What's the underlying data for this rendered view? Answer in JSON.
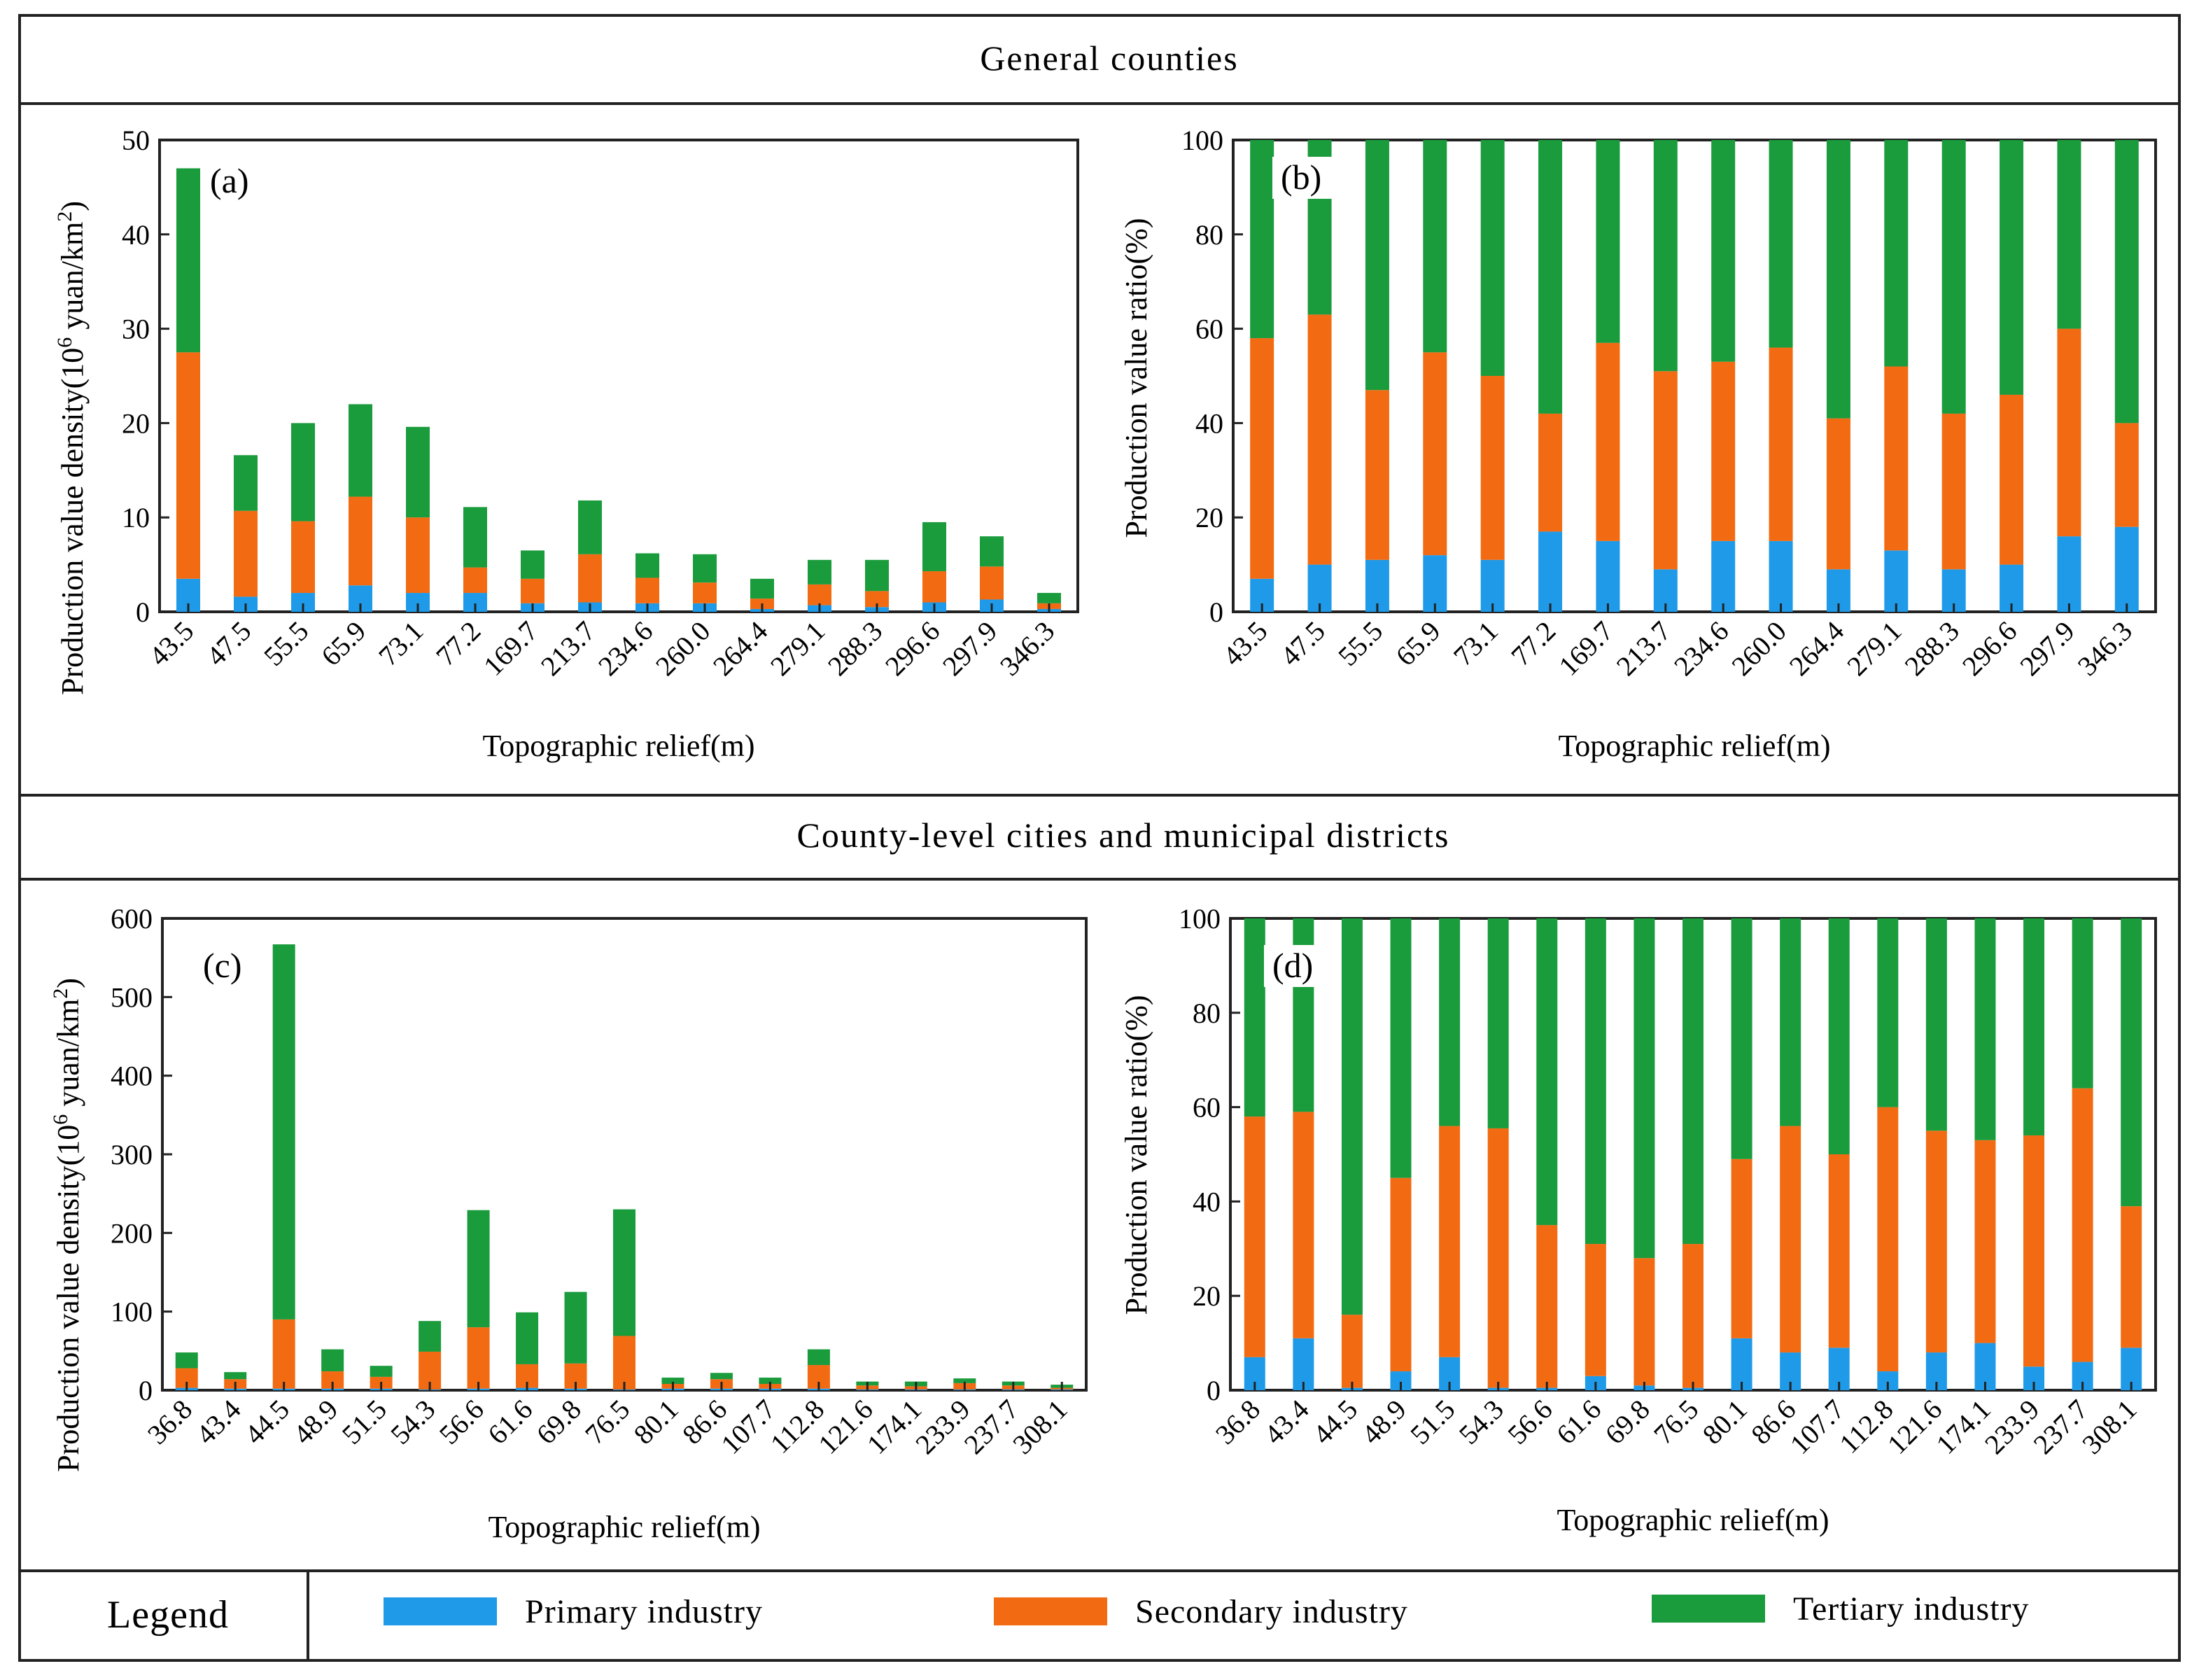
{
  "figure": {
    "section_top_title": "General counties",
    "section_bottom_title": "County-level cities and municipal districts",
    "legend_title": "Legend"
  },
  "series_meta": [
    {
      "name": "Primary industry",
      "color": "#1f9ae8"
    },
    {
      "name": "Secondary industry",
      "color": "#f26b12"
    },
    {
      "name": "Tertiary industry",
      "color": "#1a9b3c"
    }
  ],
  "chart_data": [
    {
      "id": "a",
      "panel_label": "(a)",
      "type": "bar",
      "stacked": true,
      "categories": [
        "43.5",
        "47.5",
        "55.5",
        "65.9",
        "73.1",
        "77.2",
        "169.7",
        "213.7",
        "234.6",
        "260.0",
        "264.4",
        "279.1",
        "288.3",
        "296.6",
        "297.9",
        "346.3"
      ],
      "series": [
        {
          "name": "Primary industry",
          "values": [
            3.5,
            1.6,
            2.0,
            2.8,
            2.0,
            2.0,
            0.9,
            1.0,
            0.9,
            0.9,
            0.3,
            0.7,
            0.5,
            1.0,
            1.3,
            0.3
          ]
        },
        {
          "name": "Secondary industry",
          "values": [
            24.0,
            9.1,
            7.6,
            9.4,
            8.0,
            2.7,
            2.6,
            5.1,
            2.7,
            2.2,
            1.1,
            2.2,
            1.7,
            3.3,
            3.5,
            0.6
          ]
        },
        {
          "name": "Tertiary industry",
          "values": [
            19.5,
            5.9,
            10.4,
            9.8,
            9.6,
            6.4,
            3.0,
            5.7,
            2.6,
            3.0,
            2.1,
            2.6,
            3.3,
            5.2,
            3.2,
            1.1
          ]
        }
      ],
      "xlabel": "Topographic relief(m)",
      "ylabel_main": "Production value density(10",
      "ylabel_exp1": "6",
      "ylabel_mid": " yuan/km",
      "ylabel_exp2": "2",
      "ylabel_end": ")",
      "ylim": [
        0,
        50
      ],
      "yticks": [
        0,
        10,
        20,
        30,
        40,
        50
      ],
      "grid": false
    },
    {
      "id": "b",
      "panel_label": "(b)",
      "type": "bar",
      "stacked": true,
      "categories": [
        "43.5",
        "47.5",
        "55.5",
        "65.9",
        "73.1",
        "77.2",
        "169.7",
        "213.7",
        "234.6",
        "260.0",
        "264.4",
        "279.1",
        "288.3",
        "296.6",
        "297.9",
        "346.3"
      ],
      "series": [
        {
          "name": "Primary industry",
          "values": [
            7,
            10,
            11,
            12,
            11,
            17,
            15,
            9,
            15,
            15,
            9,
            13,
            9,
            10,
            16,
            18
          ]
        },
        {
          "name": "Secondary industry",
          "values": [
            51,
            53,
            36,
            43,
            39,
            25,
            42,
            42,
            38,
            41,
            32,
            39,
            33,
            36,
            44,
            22
          ]
        },
        {
          "name": "Tertiary industry",
          "values": [
            42,
            37,
            53,
            45,
            50,
            58,
            43,
            49,
            47,
            44,
            59,
            48,
            58,
            54,
            40,
            60
          ]
        }
      ],
      "xlabel": "Topographic relief(m)",
      "ylabel": "Production value ratio(%)",
      "ylim": [
        0,
        100
      ],
      "yticks": [
        0,
        20,
        40,
        60,
        80,
        100
      ],
      "grid": false
    },
    {
      "id": "c",
      "panel_label": "(c)",
      "type": "bar",
      "stacked": true,
      "categories": [
        "36.8",
        "43.4",
        "44.5",
        "48.9",
        "51.5",
        "54.3",
        "56.6",
        "61.6",
        "69.8",
        "76.5",
        "80.1",
        "86.6",
        "107.7",
        "112.8",
        "121.6",
        "174.1",
        "233.9",
        "237.7",
        "308.1"
      ],
      "series": [
        {
          "name": "Primary industry",
          "values": [
            3,
            2,
            2,
            2,
            2,
            1,
            2,
            3,
            2,
            1,
            2,
            2,
            2,
            2,
            1,
            1,
            1,
            1,
            1
          ]
        },
        {
          "name": "Secondary industry",
          "values": [
            25,
            12,
            88,
            22,
            15,
            48,
            78,
            30,
            32,
            68,
            6,
            12,
            6,
            30,
            5,
            4,
            8,
            5,
            2
          ]
        },
        {
          "name": "Tertiary industry",
          "values": [
            20,
            9,
            477,
            28,
            14,
            39,
            149,
            66,
            91,
            161,
            8,
            8,
            8,
            20,
            5,
            6,
            6,
            5,
            4
          ]
        }
      ],
      "xlabel": "Topographic relief(m)",
      "ylabel_main": "Production value density(10",
      "ylabel_exp1": "6",
      "ylabel_mid": " yuan/km",
      "ylabel_exp2": "2",
      "ylabel_end": ")",
      "ylim": [
        0,
        600
      ],
      "yticks": [
        0,
        100,
        200,
        300,
        400,
        500,
        600
      ],
      "grid": false
    },
    {
      "id": "d",
      "panel_label": "(d)",
      "type": "bar",
      "stacked": true,
      "categories": [
        "36.8",
        "43.4",
        "44.5",
        "48.9",
        "51.5",
        "54.3",
        "56.6",
        "61.6",
        "69.8",
        "76.5",
        "80.1",
        "86.6",
        "107.7",
        "112.8",
        "121.6",
        "174.1",
        "233.9",
        "237.7",
        "308.1"
      ],
      "series": [
        {
          "name": "Primary industry",
          "values": [
            7,
            11,
            0.5,
            4,
            7,
            0.5,
            0.5,
            3,
            1,
            0.5,
            11,
            8,
            9,
            4,
            8,
            10,
            5,
            6,
            9
          ]
        },
        {
          "name": "Secondary industry",
          "values": [
            51,
            48,
            15.5,
            41,
            49,
            55,
            34.5,
            28,
            27,
            30.5,
            38,
            48,
            41,
            56,
            47,
            43,
            49,
            58,
            30
          ]
        },
        {
          "name": "Tertiary industry",
          "values": [
            42,
            41,
            84,
            55,
            44,
            44.5,
            65,
            69,
            72,
            69,
            51,
            44,
            50,
            40,
            45,
            47,
            46,
            36,
            61
          ]
        }
      ],
      "xlabel": "Topographic relief(m)",
      "ylabel": "Production value ratio(%)",
      "ylim": [
        0,
        100
      ],
      "yticks": [
        0,
        20,
        40,
        60,
        80,
        100
      ],
      "grid": false
    }
  ]
}
